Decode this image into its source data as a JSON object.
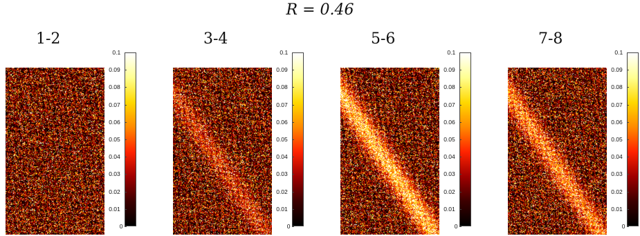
{
  "figure": {
    "title": "R = 0.46"
  },
  "colormap": {
    "name": "hot",
    "stops": [
      "#000000",
      "#3d0000",
      "#a00000",
      "#ff2400",
      "#ff8a00",
      "#ffd800",
      "#ffff90",
      "#ffffff"
    ]
  },
  "chart_data": [
    {
      "type": "heatmap",
      "title": "1-2",
      "colorbar_ticks": [
        "0",
        "0.01",
        "0.02",
        "0.03",
        "0.04",
        "0.05",
        "0.06",
        "0.07",
        "0.08",
        "0.09",
        "0.1"
      ],
      "colorbar_range": [
        0,
        0.1
      ],
      "band_strength": 0.0
    },
    {
      "type": "heatmap",
      "title": "3-4",
      "colorbar_ticks": [
        "0",
        "0.01",
        "0.02",
        "0.03",
        "0.04",
        "0.05",
        "0.06",
        "0.07",
        "0.08",
        "0.09",
        "0.1"
      ],
      "colorbar_range": [
        0,
        0.1
      ],
      "band_strength": 0.35
    },
    {
      "type": "heatmap",
      "title": "5-6",
      "colorbar_ticks": [
        "0",
        "0.01",
        "0.02",
        "0.03",
        "0.04",
        "0.05",
        "0.06",
        "0.07",
        "0.08",
        "0.09",
        "0.1"
      ],
      "colorbar_range": [
        0,
        0.1
      ],
      "band_strength": 0.9
    },
    {
      "type": "heatmap",
      "title": "7-8",
      "colorbar_ticks": [
        "0",
        "0.01",
        "0.02",
        "0.03",
        "0.04",
        "0.05",
        "0.06",
        "0.07",
        "0.08",
        "0.09",
        "0.1"
      ],
      "colorbar_range": [
        0,
        0.1
      ],
      "band_strength": 0.65
    }
  ]
}
